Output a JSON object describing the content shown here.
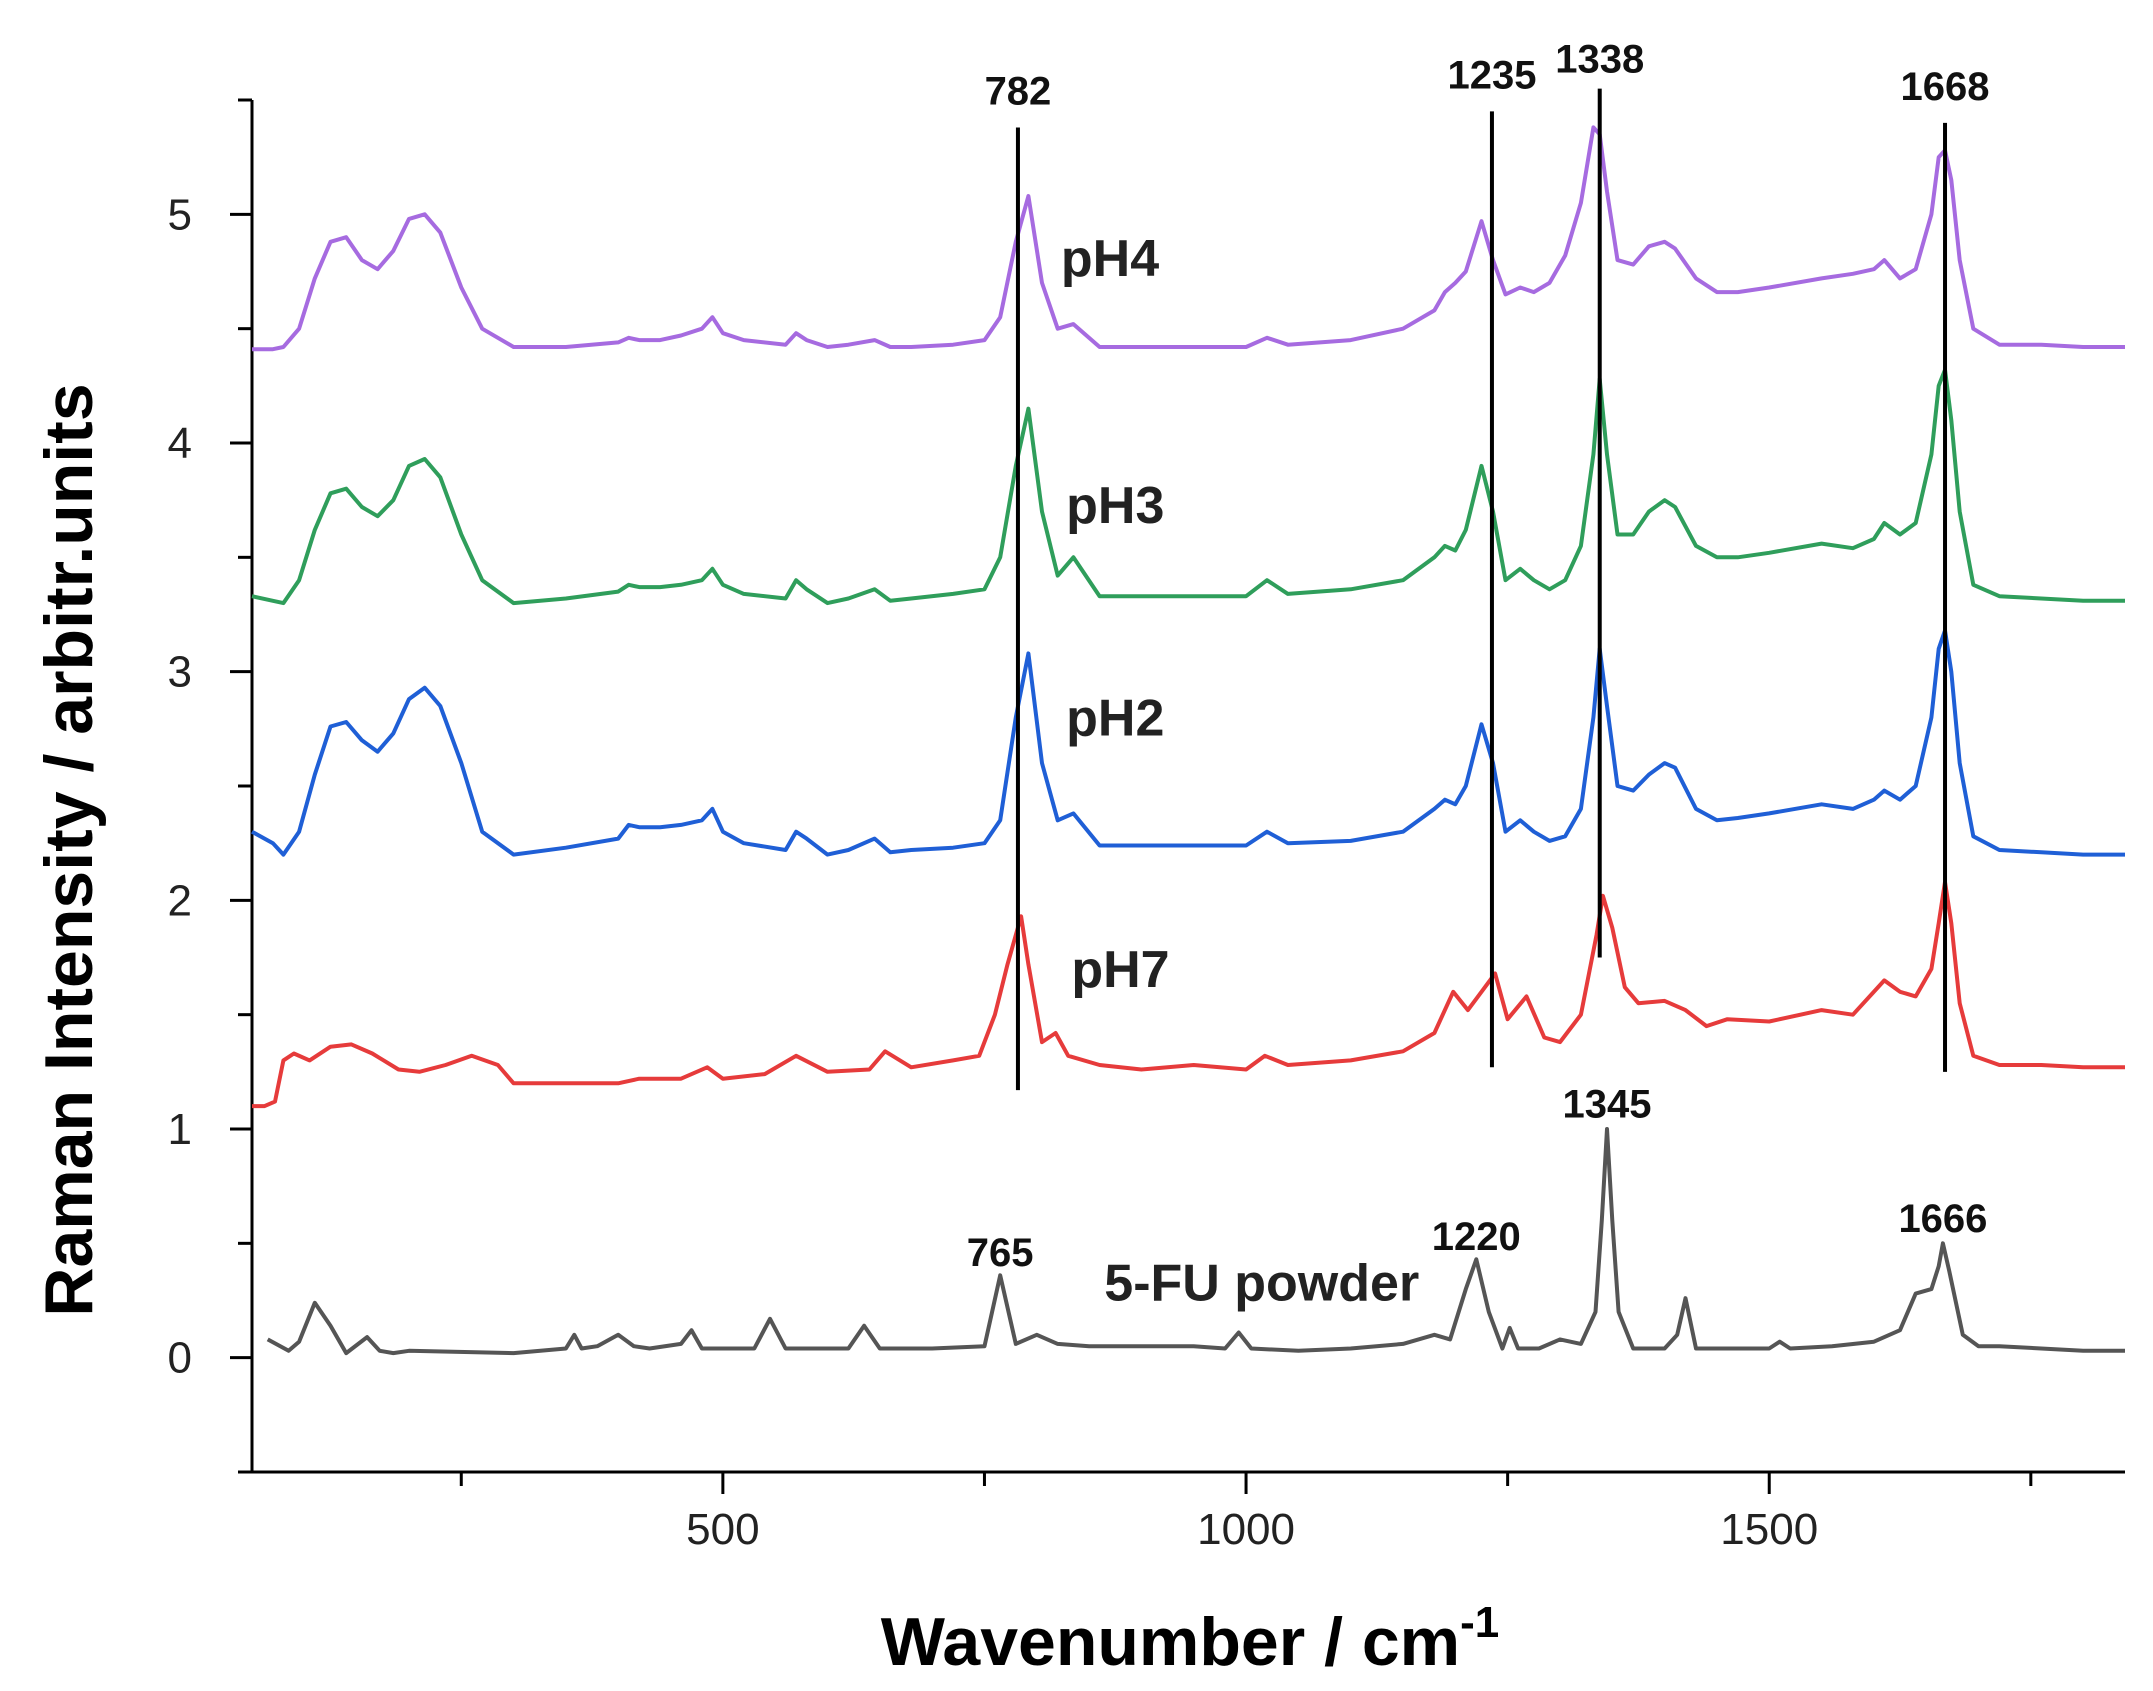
{
  "chart_data": {
    "type": "line",
    "title": "",
    "xlabel": "Wavenumber / cm",
    "xlabel_superscript": "-1",
    "ylabel": "Raman Intensity / arbitr.units",
    "xlim": [
      50,
      1840
    ],
    "ylim": [
      -0.5,
      5.5
    ],
    "x_ticks": [
      500,
      1000,
      1500
    ],
    "x_tick_labels": [
      "500",
      "1000",
      "1500"
    ],
    "x_minor_ticks": [
      250,
      750,
      1250,
      1750
    ],
    "y_ticks": [
      0,
      1,
      2,
      3,
      4,
      5
    ],
    "y_tick_labels": [
      "0",
      "1",
      "2",
      "3",
      "4",
      "5"
    ],
    "grid": false,
    "series": [
      {
        "name": "5-FU powder",
        "label": "5-FU powder",
        "color": "#555555",
        "label_x": 1015,
        "label_y": 0.25,
        "x": [
          65,
          85,
          95,
          110,
          125,
          140,
          160,
          172,
          185,
          200,
          300,
          350,
          358,
          365,
          380,
          400,
          415,
          430,
          460,
          470,
          480,
          530,
          545,
          560,
          620,
          635,
          650,
          700,
          750,
          765,
          780,
          800,
          820,
          850,
          900,
          950,
          980,
          993,
          1005,
          1050,
          1100,
          1150,
          1180,
          1195,
          1210,
          1220,
          1232,
          1245,
          1252,
          1260,
          1280,
          1300,
          1320,
          1334,
          1340,
          1345,
          1350,
          1356,
          1370,
          1400,
          1412,
          1420,
          1430,
          1460,
          1500,
          1510,
          1520,
          1560,
          1600,
          1625,
          1640,
          1655,
          1662,
          1666,
          1672,
          1685,
          1700,
          1720,
          1760,
          1800,
          1840
        ],
        "y": [
          0.08,
          0.03,
          0.07,
          0.24,
          0.14,
          0.02,
          0.09,
          0.03,
          0.02,
          0.03,
          0.02,
          0.04,
          0.1,
          0.04,
          0.05,
          0.1,
          0.05,
          0.04,
          0.06,
          0.12,
          0.04,
          0.04,
          0.17,
          0.04,
          0.04,
          0.14,
          0.04,
          0.04,
          0.05,
          0.36,
          0.06,
          0.1,
          0.06,
          0.05,
          0.05,
          0.05,
          0.04,
          0.11,
          0.04,
          0.03,
          0.04,
          0.06,
          0.1,
          0.08,
          0.3,
          0.43,
          0.2,
          0.04,
          0.13,
          0.04,
          0.04,
          0.08,
          0.06,
          0.2,
          0.6,
          1.0,
          0.6,
          0.2,
          0.04,
          0.04,
          0.1,
          0.26,
          0.04,
          0.04,
          0.04,
          0.07,
          0.04,
          0.05,
          0.07,
          0.12,
          0.28,
          0.3,
          0.4,
          0.5,
          0.38,
          0.1,
          0.05,
          0.05,
          0.04,
          0.03,
          0.03
        ]
      },
      {
        "name": "pH7",
        "label": "pH7",
        "color": "#e63b3b",
        "label_x": 880,
        "label_y": 1.62,
        "x": [
          50,
          62,
          72,
          80,
          90,
          105,
          125,
          145,
          165,
          190,
          210,
          235,
          260,
          285,
          300,
          350,
          400,
          420,
          460,
          485,
          500,
          540,
          570,
          600,
          640,
          655,
          680,
          720,
          745,
          760,
          772,
          785,
          792,
          805,
          818,
          830,
          860,
          900,
          950,
          1000,
          1018,
          1040,
          1100,
          1150,
          1180,
          1198,
          1212,
          1225,
          1238,
          1250,
          1268,
          1285,
          1300,
          1320,
          1335,
          1341,
          1350,
          1362,
          1375,
          1400,
          1420,
          1440,
          1460,
          1500,
          1550,
          1580,
          1610,
          1625,
          1640,
          1655,
          1662,
          1668,
          1674,
          1682,
          1695,
          1720,
          1760,
          1800,
          1840
        ],
        "y": [
          1.1,
          1.1,
          1.12,
          1.3,
          1.33,
          1.3,
          1.36,
          1.37,
          1.33,
          1.26,
          1.25,
          1.28,
          1.32,
          1.28,
          1.2,
          1.2,
          1.2,
          1.22,
          1.22,
          1.27,
          1.22,
          1.24,
          1.32,
          1.25,
          1.26,
          1.34,
          1.27,
          1.3,
          1.32,
          1.5,
          1.72,
          1.93,
          1.72,
          1.38,
          1.42,
          1.32,
          1.28,
          1.26,
          1.28,
          1.26,
          1.32,
          1.28,
          1.3,
          1.34,
          1.42,
          1.6,
          1.52,
          1.6,
          1.68,
          1.48,
          1.58,
          1.4,
          1.38,
          1.5,
          1.85,
          2.02,
          1.88,
          1.62,
          1.55,
          1.56,
          1.52,
          1.45,
          1.48,
          1.47,
          1.52,
          1.5,
          1.65,
          1.6,
          1.58,
          1.7,
          1.9,
          2.08,
          1.9,
          1.55,
          1.32,
          1.28,
          1.28,
          1.27,
          1.27
        ]
      },
      {
        "name": "pH2",
        "label": "pH2",
        "color": "#1f5fd6",
        "label_x": 875,
        "label_y": 2.72,
        "x": [
          50,
          70,
          80,
          95,
          110,
          125,
          140,
          155,
          170,
          185,
          200,
          215,
          230,
          250,
          270,
          300,
          350,
          400,
          410,
          420,
          440,
          460,
          480,
          490,
          500,
          520,
          560,
          570,
          580,
          600,
          620,
          645,
          660,
          680,
          720,
          750,
          765,
          780,
          792,
          805,
          820,
          835,
          860,
          900,
          950,
          1000,
          1020,
          1040,
          1100,
          1150,
          1180,
          1190,
          1200,
          1210,
          1225,
          1236,
          1248,
          1262,
          1275,
          1290,
          1305,
          1320,
          1332,
          1338,
          1345,
          1355,
          1370,
          1385,
          1400,
          1410,
          1430,
          1450,
          1470,
          1500,
          1550,
          1580,
          1600,
          1610,
          1625,
          1640,
          1655,
          1662,
          1668,
          1674,
          1682,
          1695,
          1720,
          1760,
          1800,
          1840
        ],
        "y": [
          2.3,
          2.25,
          2.2,
          2.3,
          2.55,
          2.76,
          2.78,
          2.7,
          2.65,
          2.73,
          2.88,
          2.93,
          2.85,
          2.6,
          2.3,
          2.2,
          2.23,
          2.27,
          2.33,
          2.32,
          2.32,
          2.33,
          2.35,
          2.4,
          2.3,
          2.25,
          2.22,
          2.3,
          2.27,
          2.2,
          2.22,
          2.27,
          2.21,
          2.22,
          2.23,
          2.25,
          2.35,
          2.8,
          3.08,
          2.6,
          2.35,
          2.38,
          2.24,
          2.24,
          2.24,
          2.24,
          2.3,
          2.25,
          2.26,
          2.3,
          2.4,
          2.44,
          2.42,
          2.5,
          2.77,
          2.6,
          2.3,
          2.35,
          2.3,
          2.26,
          2.28,
          2.4,
          2.8,
          3.1,
          2.85,
          2.5,
          2.48,
          2.55,
          2.6,
          2.58,
          2.4,
          2.35,
          2.36,
          2.38,
          2.42,
          2.4,
          2.44,
          2.48,
          2.44,
          2.5,
          2.8,
          3.1,
          3.18,
          3.0,
          2.6,
          2.28,
          2.22,
          2.21,
          2.2,
          2.2
        ]
      },
      {
        "name": "pH3",
        "label": "pH3",
        "color": "#2f9e5b",
        "label_x": 875,
        "label_y": 3.65,
        "x": [
          50,
          70,
          80,
          95,
          110,
          125,
          140,
          155,
          170,
          185,
          200,
          215,
          230,
          250,
          270,
          300,
          350,
          400,
          410,
          420,
          440,
          460,
          480,
          490,
          500,
          520,
          560,
          570,
          580,
          600,
          620,
          645,
          660,
          680,
          720,
          750,
          765,
          780,
          792,
          805,
          820,
          835,
          860,
          900,
          950,
          1000,
          1020,
          1040,
          1100,
          1150,
          1180,
          1190,
          1200,
          1210,
          1225,
          1236,
          1248,
          1262,
          1275,
          1290,
          1305,
          1320,
          1332,
          1338,
          1345,
          1355,
          1370,
          1385,
          1400,
          1410,
          1430,
          1450,
          1470,
          1500,
          1550,
          1580,
          1600,
          1610,
          1625,
          1640,
          1655,
          1662,
          1668,
          1674,
          1682,
          1695,
          1720,
          1760,
          1800,
          1840
        ],
        "y": [
          3.33,
          3.31,
          3.3,
          3.4,
          3.62,
          3.78,
          3.8,
          3.72,
          3.68,
          3.75,
          3.9,
          3.93,
          3.85,
          3.6,
          3.4,
          3.3,
          3.32,
          3.35,
          3.38,
          3.37,
          3.37,
          3.38,
          3.4,
          3.45,
          3.38,
          3.34,
          3.32,
          3.4,
          3.36,
          3.3,
          3.32,
          3.36,
          3.31,
          3.32,
          3.34,
          3.36,
          3.5,
          3.9,
          4.15,
          3.7,
          3.42,
          3.5,
          3.33,
          3.33,
          3.33,
          3.33,
          3.4,
          3.34,
          3.36,
          3.4,
          3.5,
          3.55,
          3.53,
          3.62,
          3.9,
          3.7,
          3.4,
          3.45,
          3.4,
          3.36,
          3.4,
          3.55,
          3.95,
          4.28,
          3.95,
          3.6,
          3.6,
          3.7,
          3.75,
          3.72,
          3.55,
          3.5,
          3.5,
          3.52,
          3.56,
          3.54,
          3.58,
          3.65,
          3.6,
          3.65,
          3.95,
          4.25,
          4.32,
          4.1,
          3.7,
          3.38,
          3.33,
          3.32,
          3.31,
          3.31
        ]
      },
      {
        "name": "pH4",
        "label": "pH4",
        "color": "#a66be0",
        "label_x": 870,
        "label_y": 4.73,
        "x": [
          50,
          70,
          80,
          95,
          110,
          125,
          140,
          155,
          170,
          185,
          200,
          215,
          230,
          250,
          270,
          300,
          350,
          400,
          410,
          420,
          440,
          460,
          480,
          490,
          500,
          520,
          560,
          570,
          580,
          600,
          620,
          645,
          660,
          680,
          720,
          750,
          765,
          780,
          792,
          805,
          820,
          835,
          860,
          900,
          950,
          1000,
          1020,
          1040,
          1100,
          1150,
          1180,
          1190,
          1200,
          1210,
          1225,
          1236,
          1248,
          1262,
          1275,
          1290,
          1305,
          1320,
          1332,
          1338,
          1345,
          1355,
          1370,
          1385,
          1400,
          1410,
          1430,
          1450,
          1470,
          1500,
          1550,
          1580,
          1600,
          1610,
          1625,
          1640,
          1655,
          1662,
          1668,
          1674,
          1682,
          1695,
          1720,
          1760,
          1800,
          1840
        ],
        "y": [
          4.41,
          4.41,
          4.42,
          4.5,
          4.72,
          4.88,
          4.9,
          4.8,
          4.76,
          4.84,
          4.98,
          5.0,
          4.92,
          4.68,
          4.5,
          4.42,
          4.42,
          4.44,
          4.46,
          4.45,
          4.45,
          4.47,
          4.5,
          4.55,
          4.48,
          4.45,
          4.43,
          4.48,
          4.45,
          4.42,
          4.43,
          4.45,
          4.42,
          4.42,
          4.43,
          4.45,
          4.55,
          4.88,
          5.08,
          4.7,
          4.5,
          4.52,
          4.42,
          4.42,
          4.42,
          4.42,
          4.46,
          4.43,
          4.45,
          4.5,
          4.58,
          4.66,
          4.7,
          4.75,
          4.97,
          4.8,
          4.65,
          4.68,
          4.66,
          4.7,
          4.82,
          5.05,
          5.38,
          5.35,
          5.1,
          4.8,
          4.78,
          4.86,
          4.88,
          4.85,
          4.72,
          4.66,
          4.66,
          4.68,
          4.72,
          4.74,
          4.76,
          4.8,
          4.72,
          4.76,
          5.0,
          5.25,
          5.28,
          5.15,
          4.8,
          4.5,
          4.43,
          4.43,
          4.42,
          4.42
        ]
      }
    ],
    "reference_lines": [
      {
        "x": 782,
        "label": "782",
        "y_from": 1.17,
        "y_to": 5.38,
        "label_y": 5.48
      },
      {
        "x": 1235,
        "label": "1235",
        "y_from": 1.27,
        "y_to": 5.45,
        "label_y": 5.55
      },
      {
        "x": 1338,
        "label": "1338",
        "y_from": 1.75,
        "y_to": 5.55,
        "label_y": 5.62
      },
      {
        "x": 1668,
        "label": "1668",
        "y_from": 1.25,
        "y_to": 5.4,
        "label_y": 5.5
      }
    ],
    "peak_annotations": [
      {
        "x": 765,
        "y": 0.4,
        "label": "765"
      },
      {
        "x": 1220,
        "y": 0.47,
        "label": "1220"
      },
      {
        "x": 1345,
        "y": 1.05,
        "label": "1345"
      },
      {
        "x": 1666,
        "y": 0.55,
        "label": "1666"
      }
    ]
  }
}
